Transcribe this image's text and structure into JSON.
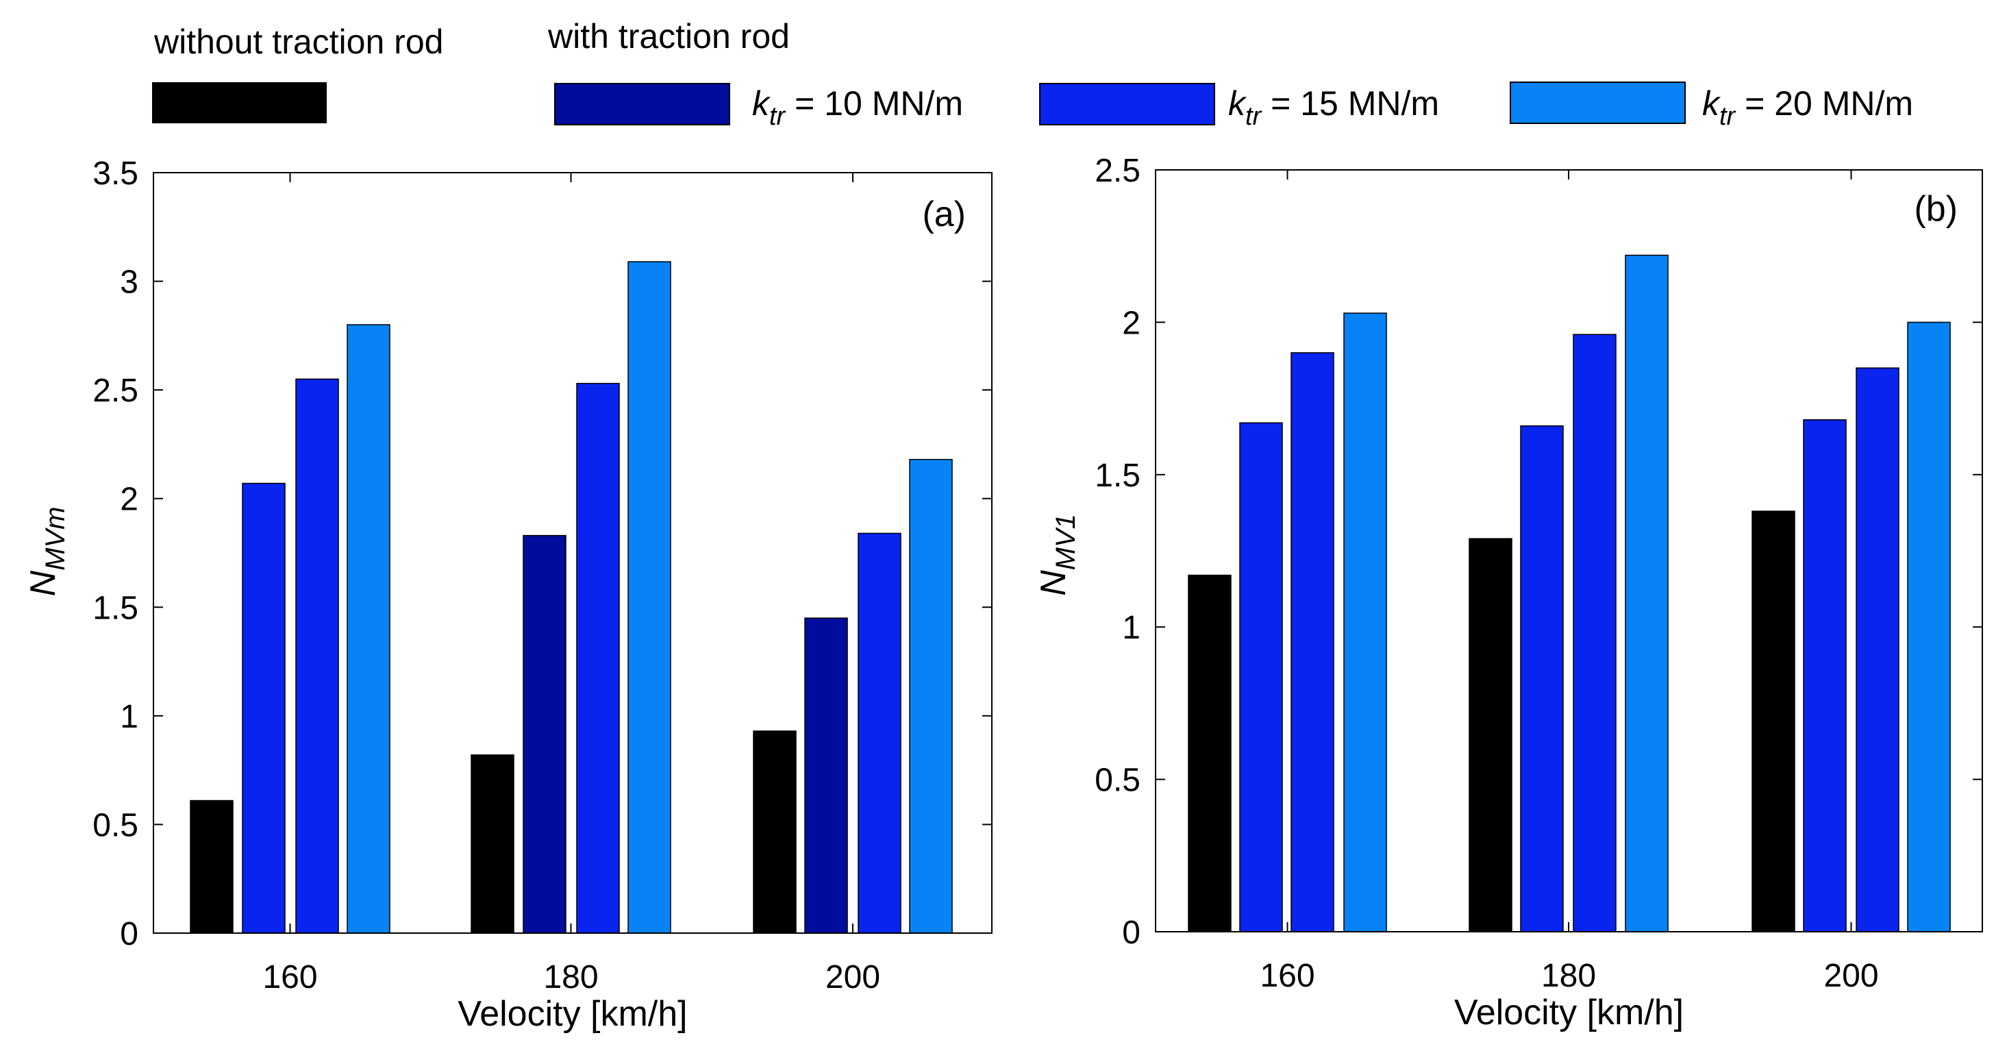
{
  "legend": {
    "group_without": "without traction rod",
    "group_with": "with traction rod",
    "symbol": "k",
    "subscript": "tr",
    "entries": [
      {
        "series": "without",
        "value_text": "",
        "color": "#000000"
      },
      {
        "series": "k10",
        "value_text": " = 10 MN/m",
        "color": "#000c9c"
      },
      {
        "series": "k15",
        "value_text": " = 15 MN/m",
        "color": "#0a24f0"
      },
      {
        "series": "k20",
        "value_text": " = 20 MN/m",
        "color": "#0883f6"
      }
    ]
  },
  "chart_data": [
    {
      "type": "bar",
      "panel_label": "(a)",
      "xlabel": "Velocity [km/h]",
      "ylabel_main": "N",
      "ylabel_sub": "MVm",
      "categories": [
        "160",
        "180",
        "200"
      ],
      "ylim": [
        0,
        3.5
      ],
      "yticks": [
        0,
        0.5,
        1,
        1.5,
        2,
        2.5,
        3,
        3.5
      ],
      "yticklabels": [
        "0",
        "0.5",
        "1",
        "1.5",
        "2",
        "2.5",
        "3",
        "3.5"
      ],
      "series": [
        {
          "key": "without",
          "color": "#000000",
          "values": [
            0.61,
            0.82,
            0.93
          ]
        },
        {
          "key": "k10",
          "color": "#000c9c",
          "values": [
            2.07,
            1.83,
            1.45
          ],
          "colors": [
            "#0a24f0",
            "#000c9c",
            "#000c9c"
          ]
        },
        {
          "key": "k15",
          "color": "#0a24f0",
          "values": [
            2.55,
            2.53,
            1.84
          ]
        },
        {
          "key": "k20",
          "color": "#0883f6",
          "values": [
            2.8,
            3.09,
            2.18
          ]
        }
      ],
      "grid": false
    },
    {
      "type": "bar",
      "panel_label": "(b)",
      "xlabel": "Velocity [km/h]",
      "ylabel_main": "N",
      "ylabel_sub": "MV1",
      "categories": [
        "160",
        "180",
        "200"
      ],
      "ylim": [
        0,
        2.5
      ],
      "yticks": [
        0,
        0.5,
        1,
        1.5,
        2,
        2.5
      ],
      "yticklabels": [
        "0",
        "0.5",
        "1",
        "1.5",
        "2",
        "2.5"
      ],
      "series": [
        {
          "key": "without",
          "color": "#000000",
          "values": [
            1.17,
            1.29,
            1.38
          ]
        },
        {
          "key": "k10",
          "color": "#0a24f0",
          "values": [
            1.67,
            1.66,
            1.68
          ]
        },
        {
          "key": "k15",
          "color": "#0a24f0",
          "values": [
            1.9,
            1.96,
            1.85
          ]
        },
        {
          "key": "k20",
          "color": "#0883f6",
          "values": [
            2.03,
            2.22,
            2.0
          ]
        }
      ],
      "grid": false
    }
  ]
}
